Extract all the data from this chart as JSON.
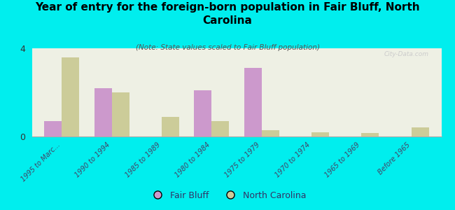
{
  "title": "Year of entry for the foreign-born population in Fair Bluff, North\nCarolina",
  "subtitle": "(Note: State values scaled to Fair Bluff population)",
  "categories": [
    "1995 to Marc...",
    "1990 to 1994",
    "1985 to 1989",
    "1980 to 1984",
    "1975 to 1979",
    "1970 to 1974",
    "1965 to 1969",
    "Before 1965"
  ],
  "fair_bluff_values": [
    0.7,
    2.2,
    0.0,
    2.1,
    3.1,
    0.0,
    0.0,
    0.0
  ],
  "nc_values": [
    3.6,
    2.0,
    0.9,
    0.7,
    0.3,
    0.2,
    0.15,
    0.4
  ],
  "fair_bluff_color": "#cc99cc",
  "nc_color": "#cccc99",
  "background_color": "#00eeee",
  "plot_bg_color": "#eef0e4",
  "ylim": [
    0,
    4
  ],
  "yticks": [
    0,
    4
  ],
  "watermark": "City-Data.com",
  "bar_width": 0.35,
  "legend_fair_bluff": "Fair Bluff",
  "legend_nc": "North Carolina"
}
